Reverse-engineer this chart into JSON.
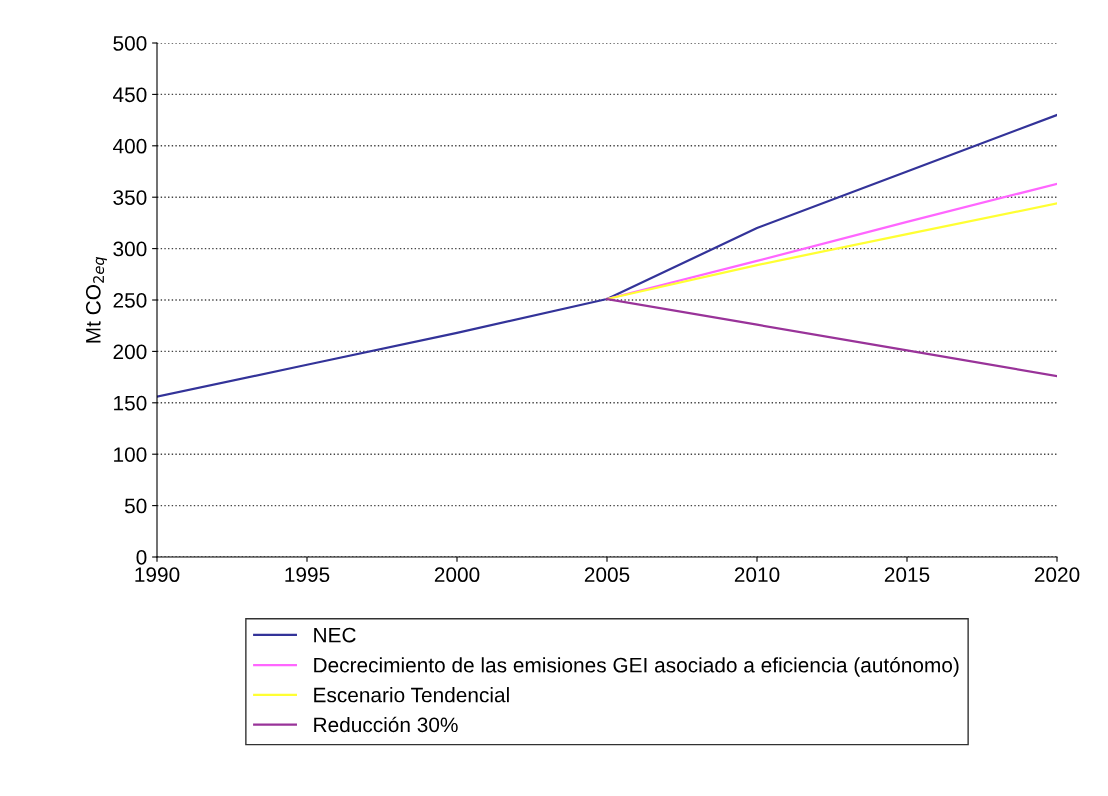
{
  "chart_data": {
    "type": "line",
    "ylabel": "Mt CO$_{2eq}$",
    "x": [
      1990,
      1995,
      2000,
      2005,
      2010,
      2015,
      2020
    ],
    "series": [
      {
        "name": "NEC",
        "color": "#333399",
        "values": [
          156,
          187,
          218,
          251,
          320,
          375,
          430
        ]
      },
      {
        "name": "Decrecimiento de las emisiones GEI asociado a eficiencia (autónomo)",
        "color": "#ff66ff",
        "values": [
          null,
          null,
          null,
          251,
          288,
          326,
          363
        ]
      },
      {
        "name": "Escenario Tendencial",
        "color": "#ffff33",
        "values": [
          null,
          null,
          null,
          251,
          284,
          314,
          344
        ]
      },
      {
        "name": "Reducción 30%",
        "color": "#993399",
        "values": [
          null,
          null,
          null,
          251,
          226,
          201,
          176
        ]
      }
    ],
    "xlim": [
      1990,
      2020
    ],
    "xticks": [
      1990,
      1995,
      2000,
      2005,
      2010,
      2015,
      2020
    ],
    "ylim": [
      0,
      500
    ],
    "yticks": [
      0,
      50,
      100,
      150,
      200,
      250,
      300,
      350,
      400,
      450,
      500
    ],
    "grid": "y",
    "legend": "bottom",
    "marker": "none",
    "line_style": "solid"
  }
}
